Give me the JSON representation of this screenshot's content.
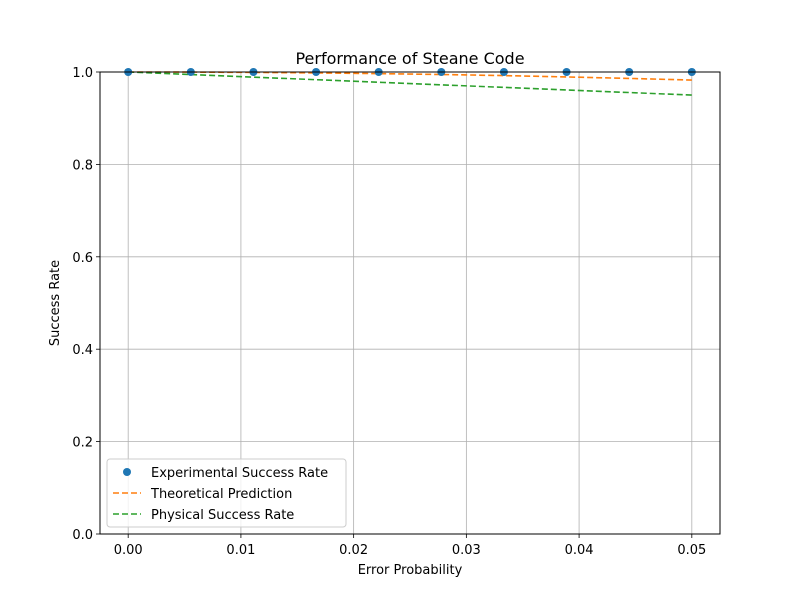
{
  "chart_data": {
    "type": "line",
    "title": "Performance of Steane Code",
    "xlabel": "Error Probability",
    "ylabel": "Success Rate",
    "xlim": [
      -0.0025,
      0.0525
    ],
    "ylim": [
      0.0,
      1.0
    ],
    "xticks": [
      0.0,
      0.01,
      0.02,
      0.03,
      0.04,
      0.05
    ],
    "xtick_labels": [
      "0.00",
      "0.01",
      "0.02",
      "0.03",
      "0.04",
      "0.05"
    ],
    "yticks": [
      0.0,
      0.2,
      0.4,
      0.6,
      0.8,
      1.0
    ],
    "ytick_labels": [
      "0.0",
      "0.2",
      "0.4",
      "0.6",
      "0.8",
      "1.0"
    ],
    "grid": true,
    "legend_position": "lower-left",
    "x": [
      0.0,
      0.005556,
      0.011111,
      0.016667,
      0.022222,
      0.027778,
      0.033333,
      0.038889,
      0.044444,
      0.05
    ],
    "series": [
      {
        "name": "Experimental Success Rate",
        "style": "markers",
        "color": "#1f77b4",
        "values": [
          1.0,
          1.0,
          1.0,
          1.0,
          1.0,
          1.0,
          1.0,
          1.0,
          1.0,
          1.0
        ]
      },
      {
        "name": "Theoretical Prediction",
        "style": "dashed",
        "color": "#ff7f0e",
        "values": [
          1.0,
          0.9998,
          0.9991,
          0.998,
          0.9965,
          0.9946,
          0.9922,
          0.9893,
          0.9861,
          0.9825
        ]
      },
      {
        "name": "Physical Success Rate",
        "style": "dashed",
        "color": "#2ca02c",
        "values": [
          1.0,
          0.99444,
          0.98889,
          0.98333,
          0.97778,
          0.97222,
          0.96667,
          0.96111,
          0.95556,
          0.95
        ]
      }
    ]
  }
}
